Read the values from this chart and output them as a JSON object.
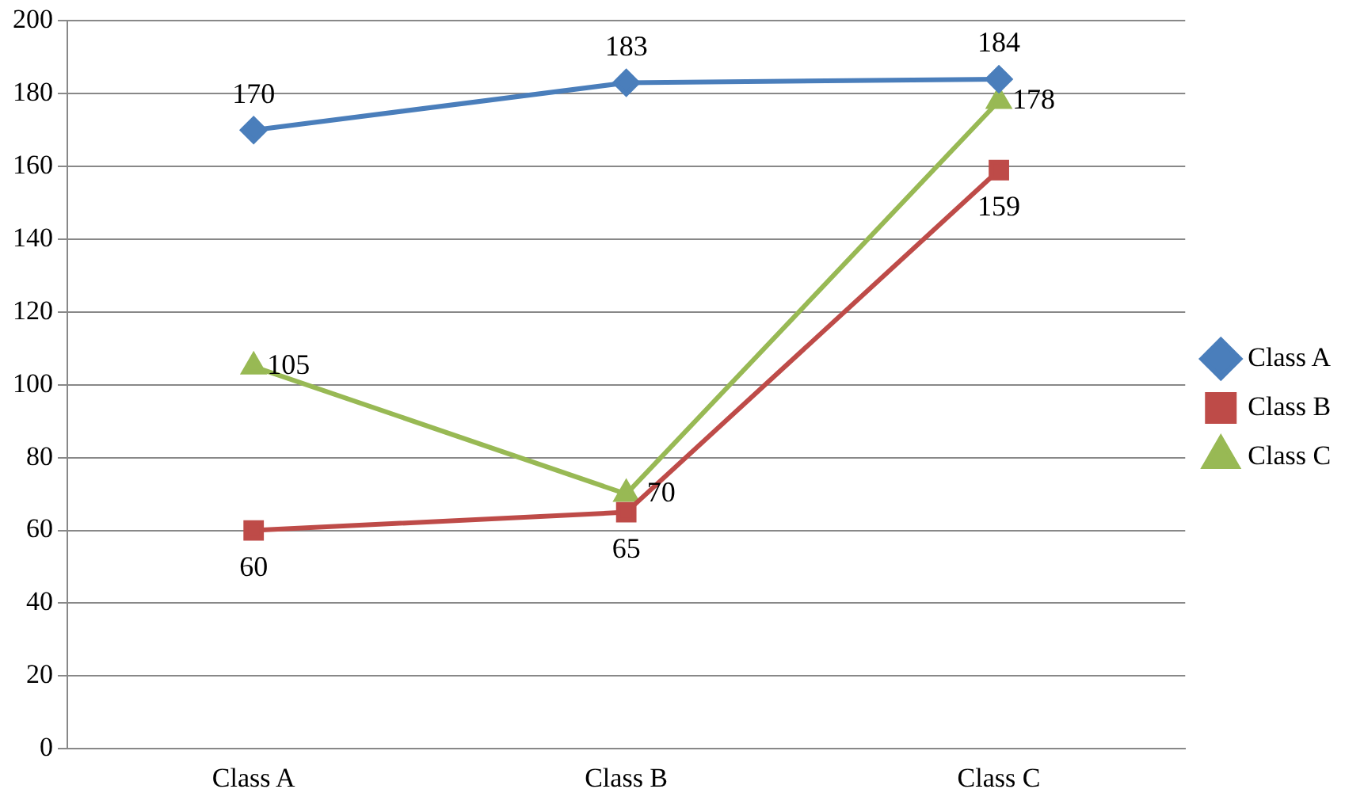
{
  "chart_data": {
    "type": "line",
    "categories": [
      "Class A",
      "Class B",
      "Class C"
    ],
    "series": [
      {
        "name": "Class A",
        "color": "#4a7ebb",
        "marker": "diamond",
        "values": [
          170,
          183,
          184
        ]
      },
      {
        "name": "Class B",
        "color": "#be4b48",
        "marker": "square",
        "values": [
          60,
          65,
          159
        ]
      },
      {
        "name": "Class C",
        "color": "#98b954",
        "marker": "triangle",
        "values": [
          105,
          70,
          178
        ]
      }
    ],
    "ylim": [
      0,
      200
    ],
    "yticks": [
      0,
      20,
      40,
      60,
      80,
      100,
      120,
      140,
      160,
      180,
      200
    ],
    "grid": "y",
    "legend": "right",
    "data_labels": true
  }
}
